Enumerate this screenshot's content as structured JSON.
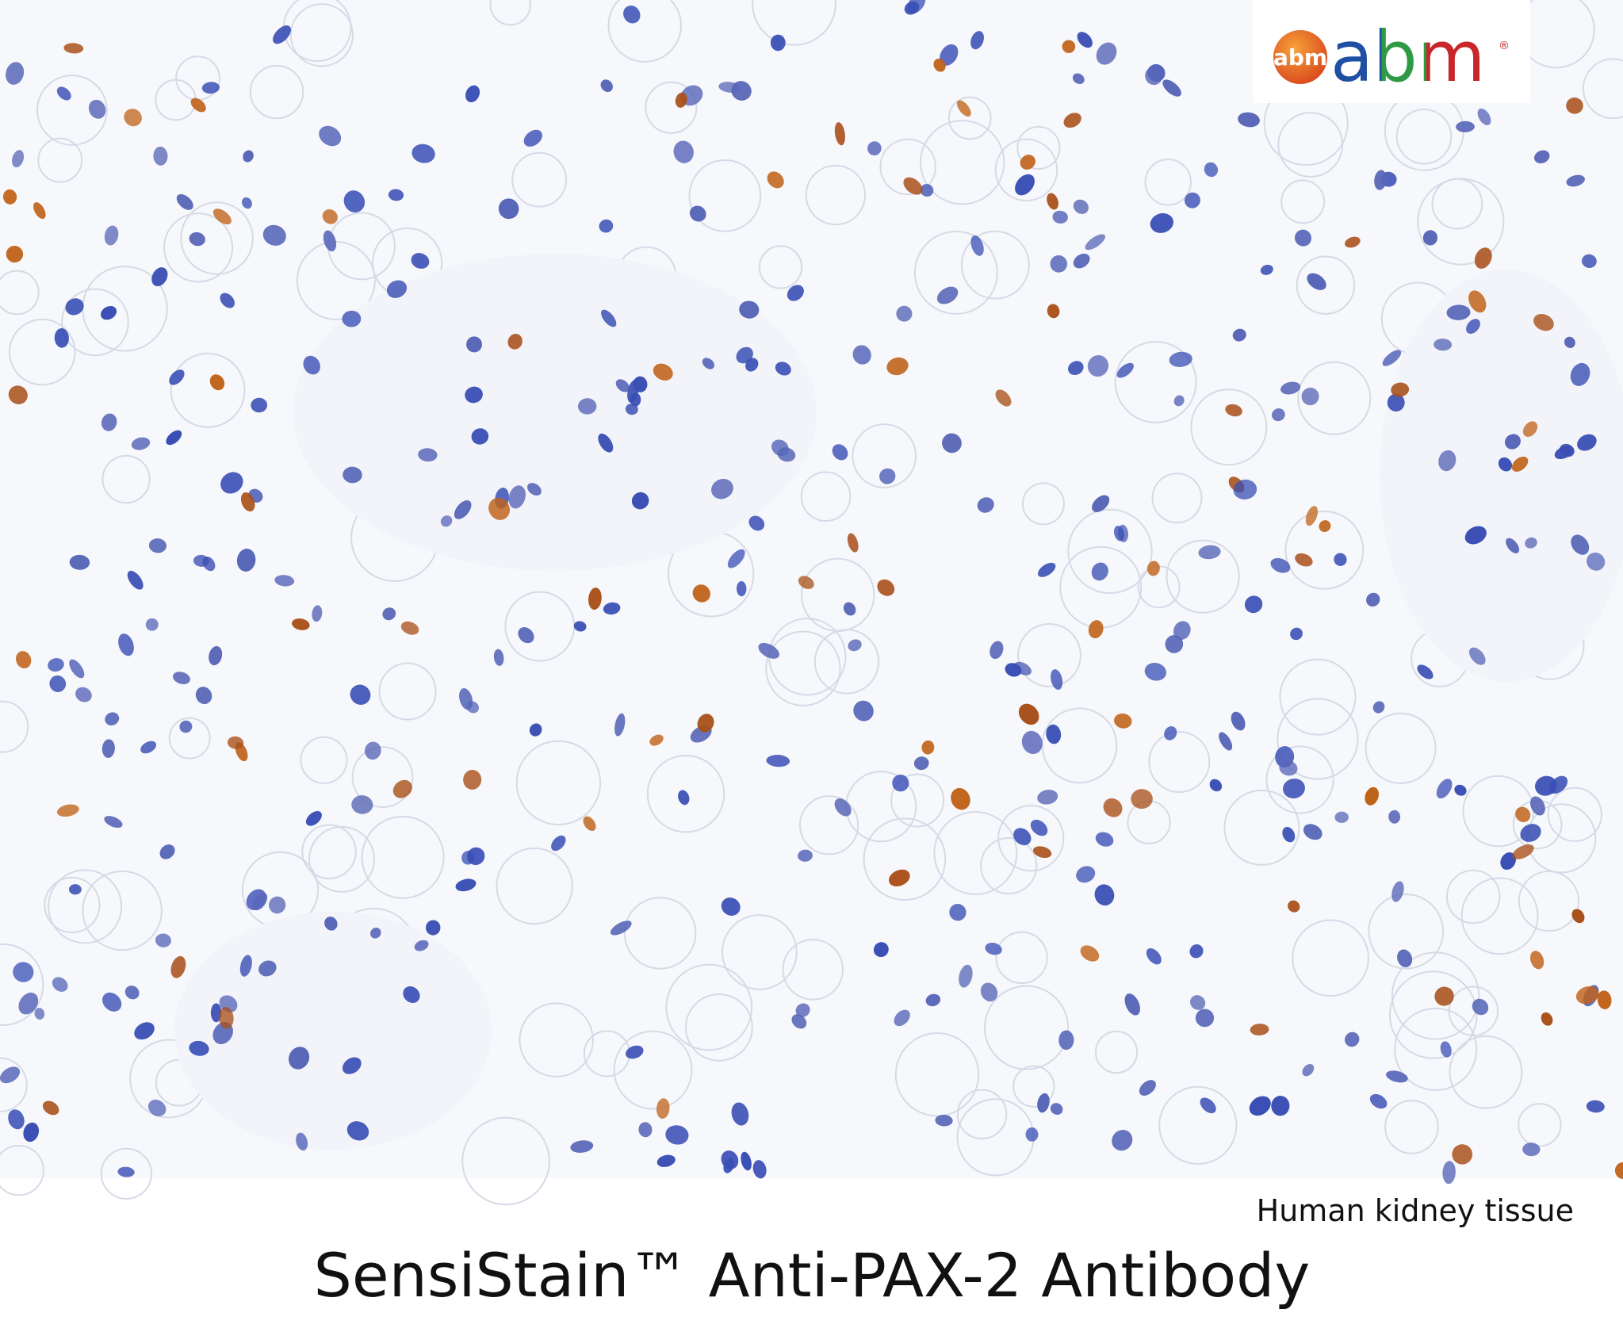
{
  "logo": {
    "badge": "abm",
    "wordmark": "abm",
    "mark": "®"
  },
  "caption": "Human kidney tissue",
  "title": "SensiStain™ Anti-PAX-2 Antibody"
}
